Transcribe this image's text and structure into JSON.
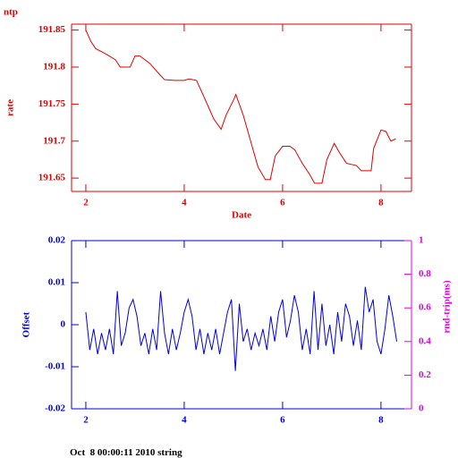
{
  "chart_data": [
    {
      "type": "line",
      "title": "ntp",
      "ylabel": "rate",
      "xlabel": "Date",
      "color": "#e00000",
      "x": [
        2.0,
        2.1,
        2.2,
        2.4,
        2.6,
        2.7,
        2.9,
        3.0,
        3.1,
        3.3,
        3.5,
        3.6,
        3.8,
        4.0,
        4.1,
        4.25,
        4.4,
        4.5,
        4.6,
        4.75,
        4.85,
        5.0,
        5.05,
        5.2,
        5.35,
        5.5,
        5.65,
        5.75,
        5.85,
        6.0,
        6.15,
        6.25,
        6.4,
        6.55,
        6.65,
        6.8,
        6.9,
        7.05,
        7.15,
        7.3,
        7.5,
        7.6,
        7.8,
        7.85,
        8.0,
        8.1,
        8.2,
        8.3
      ],
      "values": [
        191.85,
        191.835,
        191.825,
        191.818,
        191.81,
        191.8,
        191.8,
        191.815,
        191.815,
        191.805,
        191.79,
        191.783,
        191.782,
        191.782,
        191.784,
        191.782,
        191.76,
        191.745,
        191.73,
        191.716,
        191.735,
        191.755,
        191.763,
        191.735,
        191.7,
        191.665,
        191.648,
        191.648,
        191.68,
        191.693,
        191.693,
        191.688,
        191.67,
        191.655,
        191.643,
        191.643,
        191.675,
        191.697,
        191.685,
        191.67,
        191.667,
        191.66,
        191.66,
        191.69,
        191.715,
        191.713,
        191.7,
        191.703
      ],
      "xlim": [
        1.71,
        8.62
      ],
      "ylim": [
        191.632,
        191.858
      ],
      "xticks": [
        2,
        4,
        6,
        8
      ],
      "yticks": [
        191.65,
        191.7,
        191.75,
        191.8,
        191.85
      ]
    },
    {
      "type": "line",
      "ylabel": "Offset",
      "y2label": "rnd-trip(ms)",
      "color": "#0000e0",
      "y2color": "#e000e0",
      "x": [
        2.0,
        2.08,
        2.16,
        2.24,
        2.32,
        2.4,
        2.48,
        2.56,
        2.64,
        2.72,
        2.8,
        2.88,
        2.96,
        3.04,
        3.12,
        3.2,
        3.28,
        3.36,
        3.44,
        3.52,
        3.6,
        3.68,
        3.76,
        3.84,
        3.92,
        4.0,
        4.08,
        4.16,
        4.24,
        4.32,
        4.4,
        4.48,
        4.56,
        4.64,
        4.72,
        4.8,
        4.88,
        4.96,
        5.04,
        5.12,
        5.2,
        5.28,
        5.36,
        5.44,
        5.52,
        5.6,
        5.68,
        5.76,
        5.84,
        5.92,
        6.0,
        6.08,
        6.16,
        6.24,
        6.32,
        6.4,
        6.48,
        6.56,
        6.64,
        6.72,
        6.8,
        6.88,
        6.96,
        7.04,
        7.12,
        7.2,
        7.28,
        7.36,
        7.44,
        7.52,
        7.6,
        7.68,
        7.76,
        7.84,
        7.92,
        8.0,
        8.08,
        8.16,
        8.24,
        8.32
      ],
      "values": [
        0.003,
        -0.006,
        -0.001,
        -0.007,
        -0.002,
        -0.006,
        -0.001,
        -0.007,
        0.008,
        -0.005,
        -0.002,
        0.004,
        0.006,
        0.002,
        -0.005,
        -0.002,
        -0.007,
        -0.001,
        -0.006,
        0.008,
        -0.002,
        -0.007,
        -0.001,
        -0.006,
        -0.002,
        0.003,
        0.006,
        0.002,
        -0.006,
        -0.001,
        -0.007,
        -0.002,
        -0.006,
        -0.001,
        -0.007,
        -0.002,
        0.003,
        0.006,
        -0.011,
        0.005,
        -0.004,
        -0.001,
        -0.006,
        -0.002,
        -0.005,
        -0.001,
        -0.006,
        0.002,
        -0.004,
        0.003,
        0.006,
        -0.003,
        0.001,
        0.007,
        0.003,
        -0.006,
        -0.001,
        -0.007,
        0.008,
        -0.006,
        0.005,
        -0.005,
        0,
        -0.007,
        0.003,
        -0.004,
        0.005,
        0.002,
        -0.005,
        0.001,
        -0.006,
        0.009,
        0.003,
        0.006,
        -0.004,
        -0.007,
        -0.001,
        0.007,
        0.002,
        -0.004
      ],
      "xlim": [
        1.71,
        8.62
      ],
      "ylim": [
        -0.02,
        0.02
      ],
      "y2lim": [
        0,
        1
      ],
      "xticks": [
        2,
        4,
        6,
        8
      ],
      "yticks": [
        -0.02,
        -0.01,
        0,
        0.01,
        0.02
      ],
      "y2ticks": [
        0,
        0.2,
        0.4,
        0.6,
        0.8,
        1
      ]
    }
  ],
  "footer": "Oct  8 00:00:11 2010 string"
}
